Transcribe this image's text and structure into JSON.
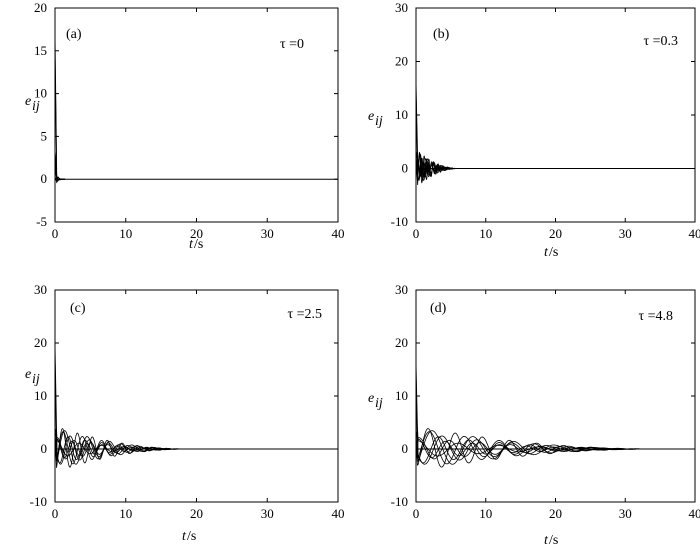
{
  "chart_data": [
    {
      "type": "line",
      "panel_label": "(a)",
      "tau_label": "τ =0",
      "xlabel_italic": "t",
      "xlabel_unit": "/s",
      "ylabel_main": "e",
      "ylabel_sub": "ij",
      "xlim": [
        0,
        40
      ],
      "ylim": [
        -5,
        20
      ],
      "xticks": [
        "0",
        "10",
        "20",
        "30",
        "40"
      ],
      "yticks": [
        "-5",
        "0",
        "5",
        "10",
        "15",
        "20"
      ],
      "xtick_values": [
        0,
        10,
        20,
        30,
        40
      ],
      "ytick_values": [
        -5,
        0,
        5,
        10,
        15,
        20
      ],
      "initial_peak": 17.2,
      "settling_time": 0.8,
      "oscillation_amplitude": 0.5
    },
    {
      "type": "line",
      "panel_label": "(b)",
      "tau_label": "τ =0.3",
      "xlabel_italic": "t",
      "xlabel_unit": "/s",
      "ylabel_main": "e",
      "ylabel_sub": "ij",
      "xlim": [
        0,
        40
      ],
      "ylim": [
        -10,
        30
      ],
      "xticks": [
        "0",
        "10",
        "20",
        "30",
        "40"
      ],
      "yticks": [
        "-10",
        "0",
        "10",
        "20",
        "30"
      ],
      "xtick_values": [
        0,
        10,
        20,
        30,
        40
      ],
      "ytick_values": [
        -10,
        0,
        10,
        20,
        30
      ],
      "initial_peak": 16.5,
      "settling_time": 6,
      "oscillation_amplitude": 3.5
    },
    {
      "type": "line",
      "panel_label": "(c)",
      "tau_label": "τ =2.5",
      "xlabel_italic": "t",
      "xlabel_unit": "/s",
      "ylabel_main": "e",
      "ylabel_sub": "ij",
      "xlim": [
        0,
        40
      ],
      "ylim": [
        -10,
        30
      ],
      "xticks": [
        "0",
        "10",
        "20",
        "30",
        "40"
      ],
      "yticks": [
        "-10",
        "0",
        "10",
        "20",
        "30"
      ],
      "xtick_values": [
        0,
        10,
        20,
        30,
        40
      ],
      "ytick_values": [
        -10,
        0,
        10,
        20,
        30
      ],
      "initial_peak": 20,
      "settling_time": 19,
      "oscillation_amplitude": 4.5
    },
    {
      "type": "line",
      "panel_label": "(d)",
      "tau_label": "τ =4.8",
      "xlabel_italic": "t",
      "xlabel_unit": "/s",
      "ylabel_main": "e",
      "ylabel_sub": "ij",
      "xlim": [
        0,
        40
      ],
      "ylim": [
        -10,
        30
      ],
      "xticks": [
        "0",
        "10",
        "20",
        "30",
        "40"
      ],
      "yticks": [
        "-10",
        "0",
        "10",
        "20",
        "30"
      ],
      "xtick_values": [
        0,
        10,
        20,
        30,
        40
      ],
      "ytick_values": [
        -10,
        0,
        10,
        20,
        30
      ],
      "initial_peak": 16.5,
      "settling_time": 35,
      "oscillation_amplitude": 4.5
    }
  ]
}
